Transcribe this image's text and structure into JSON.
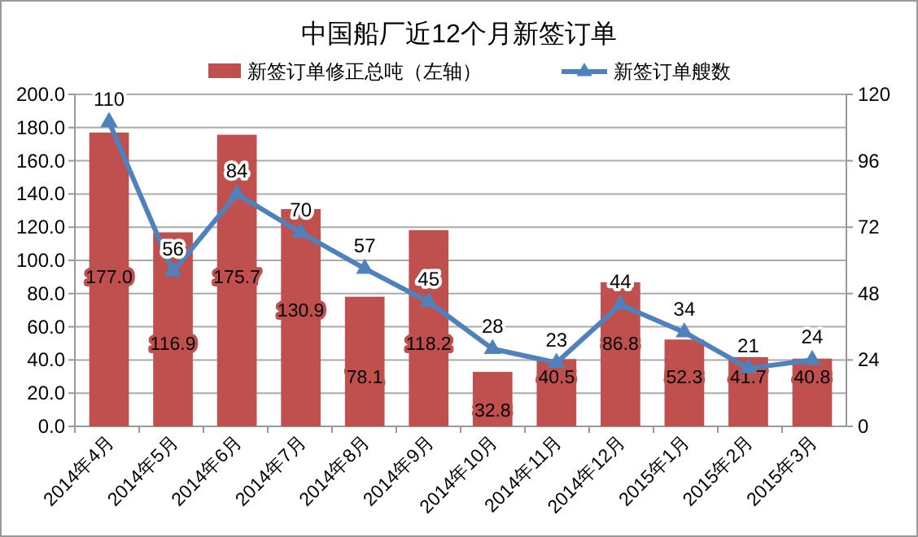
{
  "chart_data": {
    "type": "bar",
    "title": "中国船厂近12个月新签订单",
    "categories": [
      "2014年4月",
      "2014年5月",
      "2014年6月",
      "2014年7月",
      "2014年8月",
      "2014年9月",
      "2014年10月",
      "2014年11月",
      "2014年12月",
      "2015年1月",
      "2015年2月",
      "2015年3月"
    ],
    "series": [
      {
        "name": "新签订单修正总吨（左轴）",
        "color": "#c0504d",
        "values": [
          177.0,
          116.9,
          175.7,
          130.9,
          78.1,
          118.2,
          32.8,
          40.5,
          86.8,
          52.3,
          41.7,
          40.8
        ],
        "value_labels": [
          "177.0",
          "116.9",
          "175.7",
          "130.9",
          "78.1",
          "118.2",
          "32.8",
          "40.5",
          "86.8",
          "52.3",
          "41.7",
          "40.8"
        ]
      },
      {
        "name": "新签订单艘数",
        "type": "line",
        "axis": "y2",
        "color": "#4f81bd",
        "marker": "triangle",
        "values": [
          110,
          56,
          84,
          70,
          57,
          45,
          28,
          23,
          44,
          34,
          21,
          24
        ],
        "value_labels": [
          "110",
          "56",
          "84",
          "70",
          "57",
          "45",
          "28",
          "23",
          "44",
          "34",
          "21",
          "24"
        ]
      }
    ],
    "ylim": [
      0,
      200
    ],
    "yticks": [
      {
        "value": 0,
        "label": "0.0"
      },
      {
        "value": 20,
        "label": "20.0"
      },
      {
        "value": 40,
        "label": "40.0"
      },
      {
        "value": 60,
        "label": "60.0"
      },
      {
        "value": 80,
        "label": "80.0"
      },
      {
        "value": 100,
        "label": "100.0"
      },
      {
        "value": 120,
        "label": "120.0"
      },
      {
        "value": 140,
        "label": "140.0"
      },
      {
        "value": 160,
        "label": "160.0"
      },
      {
        "value": 180,
        "label": "180.0"
      },
      {
        "value": 200,
        "label": "200.0"
      }
    ],
    "y2lim": [
      0,
      120
    ],
    "y2ticks": [
      0,
      24,
      48,
      72,
      96,
      120
    ],
    "grid": "y",
    "legend": "top"
  }
}
